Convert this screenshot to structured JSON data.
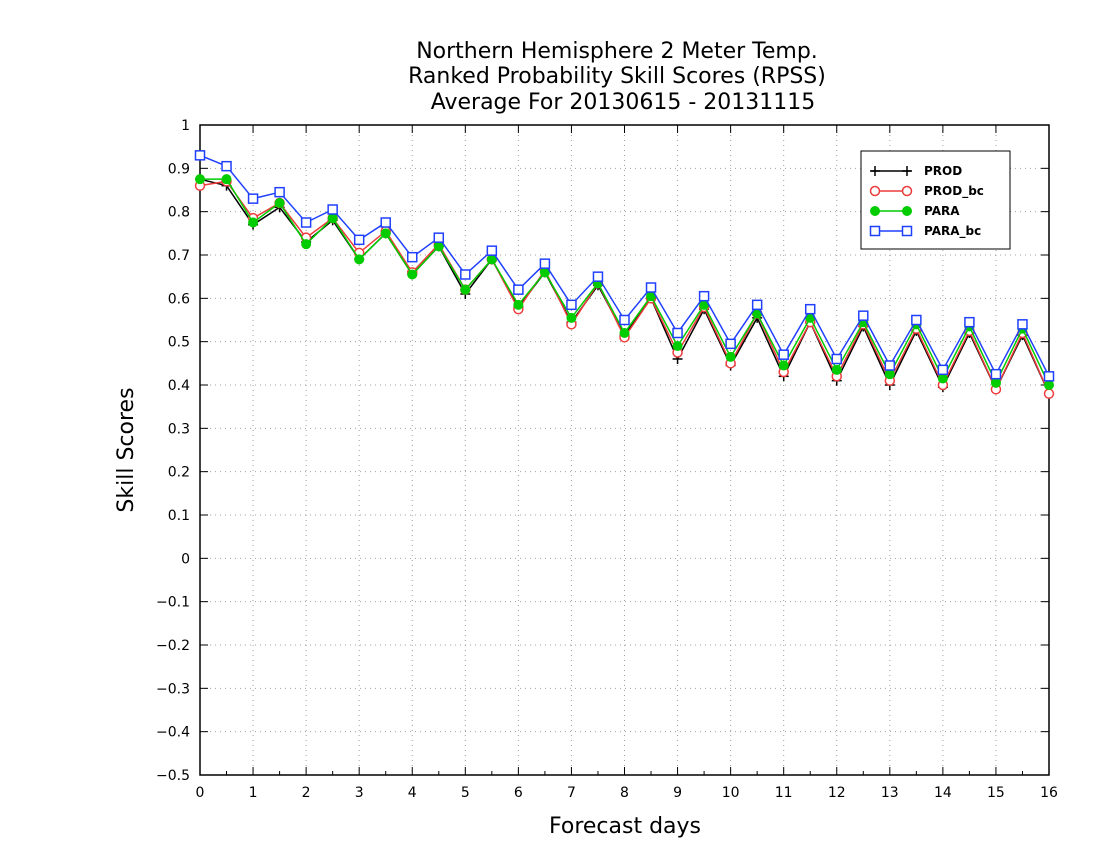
{
  "chart_data": {
    "type": "line",
    "title_lines": [
      "Northern Hemisphere 2 Meter Temp.",
      "Ranked Probability Skill Scores (RPSS)",
      "Average For 20130615 - 20131115"
    ],
    "xlabel": "Forecast days",
    "ylabel": "Skill Scores",
    "xlim": [
      0,
      16
    ],
    "ylim": [
      -0.5,
      1
    ],
    "xticks": [
      0,
      1,
      2,
      3,
      4,
      5,
      6,
      7,
      8,
      9,
      10,
      11,
      12,
      13,
      14,
      15,
      16
    ],
    "xtick_labels": [
      "0",
      "1",
      "2",
      "3",
      "4",
      "5",
      "6",
      "7",
      "8",
      "9",
      "10",
      "11",
      "12",
      "13",
      "14",
      "15",
      "16"
    ],
    "yticks": [
      -0.5,
      -0.4,
      -0.3,
      -0.2,
      -0.1,
      0,
      0.1,
      0.2,
      0.3,
      0.4,
      0.5,
      0.6,
      0.7,
      0.8,
      0.9,
      1
    ],
    "ytick_labels": [
      "−0.5",
      "−0.4",
      "−0.3",
      "−0.2",
      "−0.1",
      "0",
      "0.1",
      "0.2",
      "0.3",
      "0.4",
      "0.5",
      "0.6",
      "0.7",
      "0.8",
      "0.9",
      "1"
    ],
    "grid": true,
    "legend_position": "top-right",
    "x": [
      0,
      0.5,
      1,
      1.5,
      2,
      2.5,
      3,
      3.5,
      4,
      4.5,
      5,
      5.5,
      6,
      6.5,
      7,
      7.5,
      8,
      8.5,
      9,
      9.5,
      10,
      10.5,
      11,
      11.5,
      12,
      12.5,
      13,
      13.5,
      14,
      14.5,
      15,
      15.5,
      16
    ],
    "series": [
      {
        "name": "PROD",
        "color": "#000000",
        "marker": "plus",
        "values": [
          0.875,
          0.86,
          0.77,
          0.81,
          0.73,
          0.78,
          0.69,
          0.75,
          0.655,
          0.72,
          0.61,
          0.69,
          0.58,
          0.66,
          0.545,
          0.63,
          0.515,
          0.6,
          0.46,
          0.575,
          0.445,
          0.555,
          0.42,
          0.545,
          0.41,
          0.535,
          0.4,
          0.525,
          0.395,
          0.52,
          0.39,
          0.515,
          0.38
        ]
      },
      {
        "name": "PROD_bc",
        "color": "#ee3b3b",
        "marker": "circle-open",
        "values": [
          0.86,
          0.87,
          0.785,
          0.82,
          0.74,
          0.785,
          0.705,
          0.755,
          0.66,
          0.725,
          0.62,
          0.69,
          0.575,
          0.665,
          0.54,
          0.635,
          0.51,
          0.6,
          0.475,
          0.58,
          0.45,
          0.565,
          0.43,
          0.545,
          0.42,
          0.54,
          0.41,
          0.53,
          0.4,
          0.525,
          0.39,
          0.52,
          0.38
        ]
      },
      {
        "name": "PARA",
        "color": "#00cc00",
        "marker": "circle-filled",
        "values": [
          0.875,
          0.875,
          0.775,
          0.82,
          0.725,
          0.785,
          0.69,
          0.75,
          0.655,
          0.72,
          0.62,
          0.69,
          0.585,
          0.66,
          0.555,
          0.635,
          0.52,
          0.605,
          0.49,
          0.585,
          0.465,
          0.565,
          0.445,
          0.555,
          0.435,
          0.545,
          0.425,
          0.54,
          0.415,
          0.535,
          0.405,
          0.53,
          0.4
        ]
      },
      {
        "name": "PARA_bc",
        "color": "#2040ff",
        "marker": "square-open",
        "values": [
          0.93,
          0.905,
          0.83,
          0.845,
          0.775,
          0.805,
          0.735,
          0.775,
          0.695,
          0.74,
          0.655,
          0.71,
          0.62,
          0.68,
          0.585,
          0.65,
          0.55,
          0.625,
          0.52,
          0.605,
          0.495,
          0.585,
          0.47,
          0.575,
          0.46,
          0.56,
          0.445,
          0.55,
          0.435,
          0.545,
          0.425,
          0.54,
          0.42
        ]
      }
    ]
  }
}
